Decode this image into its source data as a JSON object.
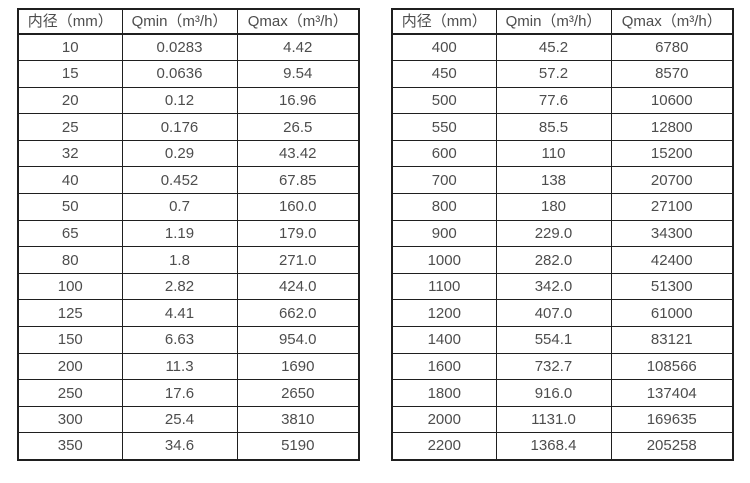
{
  "colors": {
    "border": "#1f1f1f",
    "text": "#4d4d4d",
    "background": "#ffffff"
  },
  "chart_data": [
    {
      "type": "table",
      "title": "",
      "columns": [
        "内径（mm）",
        "Qmin（m³/h）",
        "Qmax（m³/h）"
      ],
      "rows": [
        [
          "10",
          "0.0283",
          "4.42"
        ],
        [
          "15",
          "0.0636",
          "9.54"
        ],
        [
          "20",
          "0.12",
          "16.96"
        ],
        [
          "25",
          "0.176",
          "26.5"
        ],
        [
          "32",
          "0.29",
          "43.42"
        ],
        [
          "40",
          "0.452",
          "67.85"
        ],
        [
          "50",
          "0.7",
          "160.0"
        ],
        [
          "65",
          "1.19",
          "179.0"
        ],
        [
          "80",
          "1.8",
          "271.0"
        ],
        [
          "100",
          "2.82",
          "424.0"
        ],
        [
          "125",
          "4.41",
          "662.0"
        ],
        [
          "150",
          "6.63",
          "954.0"
        ],
        [
          "200",
          "11.3",
          "1690"
        ],
        [
          "250",
          "17.6",
          "2650"
        ],
        [
          "300",
          "25.4",
          "3810"
        ],
        [
          "350",
          "34.6",
          "5190"
        ]
      ]
    },
    {
      "type": "table",
      "title": "",
      "columns": [
        "内径（mm）",
        "Qmin（m³/h）",
        "Qmax（m³/h）"
      ],
      "rows": [
        [
          "400",
          "45.2",
          "6780"
        ],
        [
          "450",
          "57.2",
          "8570"
        ],
        [
          "500",
          "77.6",
          "10600"
        ],
        [
          "550",
          "85.5",
          "12800"
        ],
        [
          "600",
          "110",
          "15200"
        ],
        [
          "700",
          "138",
          "20700"
        ],
        [
          "800",
          "180",
          "27100"
        ],
        [
          "900",
          "229.0",
          "34300"
        ],
        [
          "1000",
          "282.0",
          "42400"
        ],
        [
          "1100",
          "342.0",
          "51300"
        ],
        [
          "1200",
          "407.0",
          "61000"
        ],
        [
          "1400",
          "554.1",
          "83121"
        ],
        [
          "1600",
          "732.7",
          "108566"
        ],
        [
          "1800",
          "916.0",
          "137404"
        ],
        [
          "2000",
          "1131.0",
          "169635"
        ],
        [
          "2200",
          "1368.4",
          "205258"
        ]
      ]
    }
  ]
}
